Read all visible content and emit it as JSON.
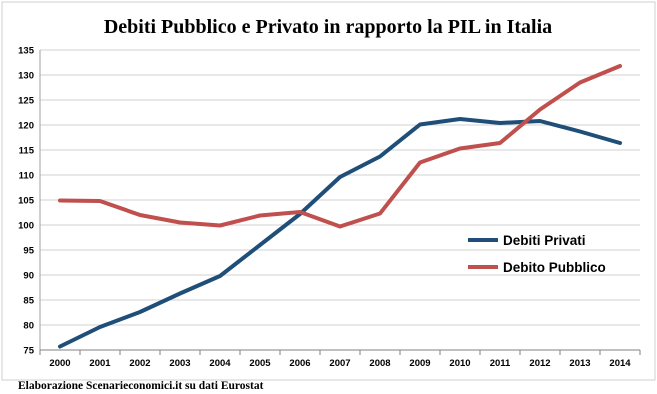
{
  "source_note": "Elaborazione Scenarieconomici.it su dati Eurostat",
  "chart_data": {
    "type": "line",
    "title": "Debiti Pubblico e Privato in rapporto la PIL in Italia",
    "xlabel": "",
    "ylabel": "",
    "x": [
      "2000",
      "2001",
      "2002",
      "2003",
      "2004",
      "2005",
      "2006",
      "2007",
      "2008",
      "2009",
      "2010",
      "2011",
      "2012",
      "2013",
      "2014"
    ],
    "ylim": [
      75,
      135
    ],
    "yticks": [
      75,
      80,
      85,
      90,
      95,
      100,
      105,
      110,
      115,
      120,
      125,
      130,
      135
    ],
    "grid": true,
    "legend_position": "right",
    "series": [
      {
        "name": "Debiti Privati",
        "color": "#1f4e79",
        "values": [
          75.7,
          79.6,
          82.6,
          86.3,
          89.8,
          96.0,
          102.2,
          109.6,
          113.7,
          120.1,
          121.2,
          120.4,
          120.8,
          118.7,
          116.4
        ]
      },
      {
        "name": "Debito Pubblico",
        "color": "#c0504d",
        "values": [
          104.9,
          104.8,
          102.0,
          100.5,
          99.9,
          101.9,
          102.6,
          99.7,
          102.3,
          112.5,
          115.3,
          116.4,
          123.1,
          128.5,
          131.8
        ]
      }
    ]
  }
}
